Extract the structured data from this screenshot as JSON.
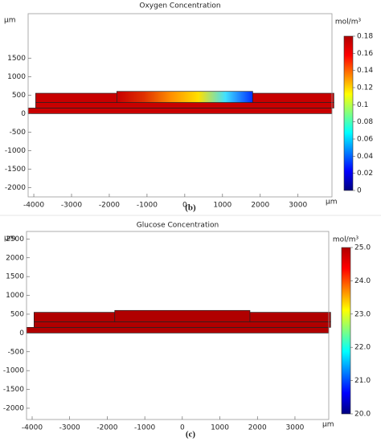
{
  "chart_data": [
    {
      "type": "field",
      "title": "Oxygen Concentration",
      "x_label": "μm",
      "y_label": "μm",
      "colorbar_label": "mol/m³",
      "panel_label": "(b)",
      "xlim": [
        -4150,
        3900
      ],
      "xticks": [
        -4000,
        -3000,
        -2000,
        -1000,
        0,
        1000,
        2000,
        3000
      ],
      "ylim": [
        -2250,
        2700
      ],
      "yticks": [
        -2000,
        -1500,
        -1000,
        -500,
        0,
        500,
        1000,
        1500
      ],
      "clim": [
        0,
        0.18
      ],
      "cticks": [
        0,
        0.02,
        0.04,
        0.06,
        0.08,
        0.1,
        0.12,
        0.14,
        0.16,
        0.18
      ],
      "colormap": [
        "#00007f",
        "#0000ff",
        "#0080ff",
        "#00ffff",
        "#80ff80",
        "#ffff00",
        "#ff8000",
        "#ff0000",
        "#b00000"
      ],
      "regions": [
        {
          "x": [
            -4150,
            3900
          ],
          "y": [
            0,
            150
          ],
          "colors": [
            "#c80000"
          ]
        },
        {
          "x": [
            -3950,
            3950
          ],
          "y": [
            150,
            300
          ],
          "colors": [
            "#c80000"
          ]
        },
        {
          "x": [
            -3950,
            -1800
          ],
          "y": [
            300,
            550
          ],
          "colors": [
            "#c80000"
          ]
        },
        {
          "x": [
            -1800,
            1800
          ],
          "y": [
            300,
            600
          ],
          "colors": [
            "#c80000",
            "#e03000",
            "#ff9000",
            "#ffe000",
            "#40e0ff",
            "#0030ff"
          ]
        },
        {
          "x": [
            1800,
            3950
          ],
          "y": [
            300,
            550
          ],
          "colors": [
            "#c80000"
          ]
        }
      ]
    },
    {
      "type": "field",
      "title": "Glucose Concentration",
      "x_label": "μm",
      "y_label": "μm",
      "colorbar_label": "mol/m³",
      "panel_label": "(c)",
      "xlim": [
        -4150,
        3900
      ],
      "xticks": [
        -4000,
        -3000,
        -2000,
        -1000,
        0,
        1000,
        2000,
        3000
      ],
      "ylim": [
        -2300,
        2700
      ],
      "yticks": [
        -2000,
        -1500,
        -1000,
        -500,
        0,
        500,
        1000,
        1500,
        2000,
        2500
      ],
      "clim": [
        20,
        25
      ],
      "cticks": [
        {
          "value": 20,
          "label": "20.0"
        },
        {
          "value": 21,
          "label": "21.0"
        },
        {
          "value": 22,
          "label": "22.0"
        },
        {
          "value": 23,
          "label": "23.0"
        },
        {
          "value": 24,
          "label": "24.0"
        },
        {
          "value": 25,
          "label": "25.0"
        }
      ],
      "colormap": [
        "#00007f",
        "#0000ff",
        "#0080ff",
        "#00ffff",
        "#80ff80",
        "#ffff00",
        "#ff8000",
        "#ff0000",
        "#b00000"
      ],
      "regions": [
        {
          "x": [
            -4150,
            3900
          ],
          "y": [
            0,
            150
          ],
          "colors": [
            "#b00000"
          ]
        },
        {
          "x": [
            -3950,
            3950
          ],
          "y": [
            150,
            300
          ],
          "colors": [
            "#b00000"
          ]
        },
        {
          "x": [
            -3950,
            -1800
          ],
          "y": [
            300,
            550
          ],
          "colors": [
            "#b00000"
          ]
        },
        {
          "x": [
            -1800,
            1800
          ],
          "y": [
            300,
            600
          ],
          "colors": [
            "#b00000"
          ]
        },
        {
          "x": [
            1800,
            3950
          ],
          "y": [
            300,
            550
          ],
          "colors": [
            "#b00000"
          ]
        }
      ]
    }
  ]
}
